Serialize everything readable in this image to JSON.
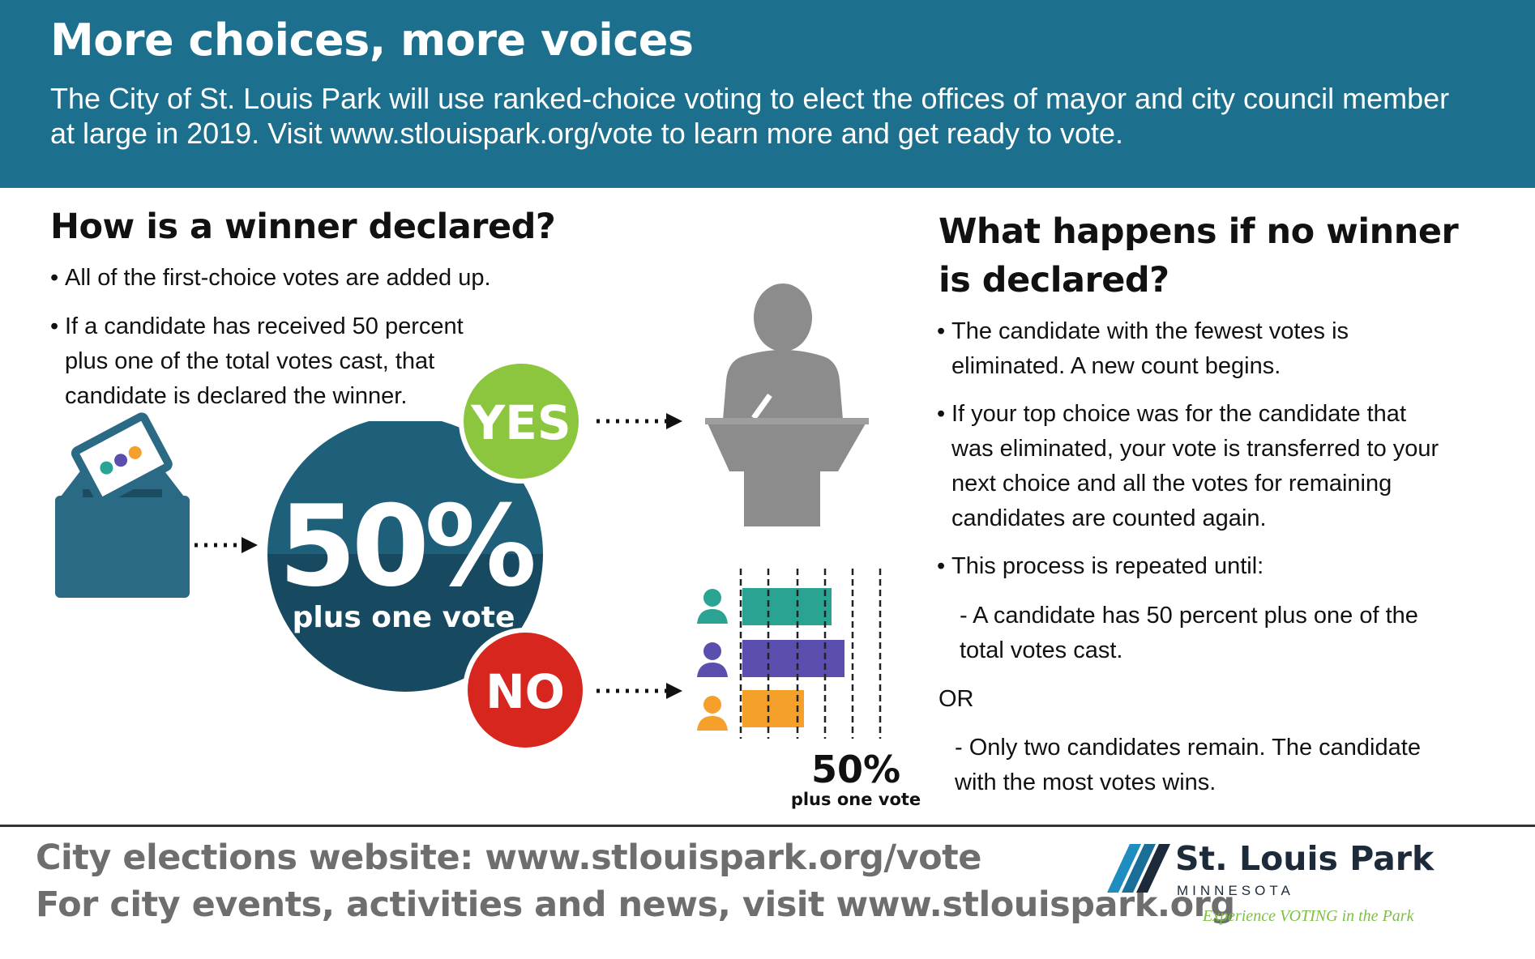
{
  "header": {
    "title": "More choices, more voices",
    "subtitle": "The City of St. Louis Park will use ranked-choice voting to elect the offices of mayor and city council member at large in 2019. Visit www.stlouispark.org/vote to learn more and get ready to vote."
  },
  "left": {
    "heading": "How is a winner declared?",
    "bullets": [
      "All of the first-choice votes are added up.",
      "If a candidate has received 50 percent plus one of the total votes cast, that candidate is declared the winner."
    ]
  },
  "diagram": {
    "big_percent": "50%",
    "big_caption": "plus one vote",
    "yes_label": "YES",
    "no_label": "NO",
    "small_percent": "50%",
    "small_caption": "plus one vote",
    "bar_colors": [
      "#2aa392",
      "#5a4fae",
      "#f5a02a"
    ]
  },
  "right": {
    "heading_line1": "What happens if no winner",
    "heading_line2": "is declared?",
    "bullet1": "The candidate with the fewest votes is eliminated. A new count begins.",
    "bullet2": "If your top choice was for the candidate that was eliminated, your vote is transferred to your next choice and all the votes for remaining candidates are counted again.",
    "bullet3": "This process is repeated until:",
    "sub1": "- A candidate has 50 percent plus one of the total votes cast.",
    "or_label": "OR",
    "sub2": "- Only two candidates remain. The candidate with the most votes wins."
  },
  "footer": {
    "line1": "City elections website: www.stlouispark.org/vote",
    "line2": "For city events, activities and news, visit www.stlouispark.org",
    "logo_name": "St. Louis Park",
    "logo_state": "MINNESOTA",
    "logo_tagline": "Experience VOTING in the Park"
  },
  "colors": {
    "header_bg": "#1d6f8e",
    "circle_top": "#1e5f7a",
    "circle_bottom": "#174a60",
    "yes": "#8cc63f",
    "no": "#d7261e",
    "podium": "#8c8c8c",
    "ballot_box": "#2a6a85"
  }
}
